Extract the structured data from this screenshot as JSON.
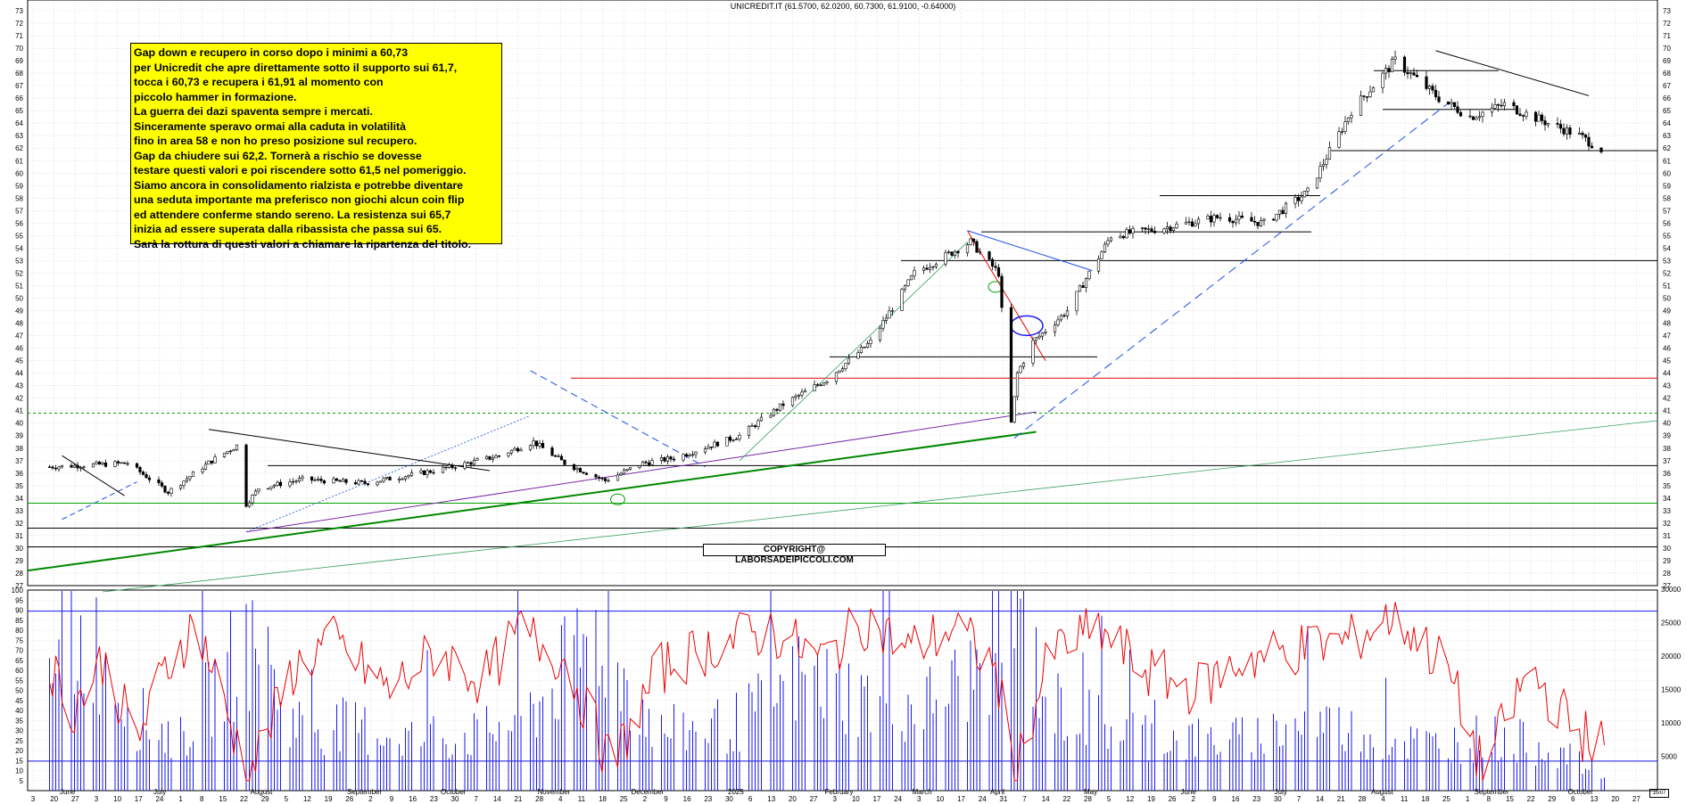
{
  "chart_data": [
    {
      "type": "candlestick",
      "title": "UNICREDIT.IT (61.5700, 62.0200, 60.7300, 61.9100, -0.64000)",
      "ylim": [
        27,
        73
      ],
      "y_ticks": [
        27,
        28,
        29,
        30,
        31,
        32,
        33,
        34,
        35,
        36,
        37,
        38,
        39,
        40,
        41,
        42,
        43,
        44,
        45,
        46,
        47,
        48,
        49,
        50,
        51,
        52,
        53,
        54,
        55,
        56,
        57,
        58,
        59,
        60,
        61,
        62,
        63,
        64,
        65,
        66,
        67,
        68,
        69,
        70,
        71,
        72,
        73
      ],
      "grid": true,
      "x_day_labels": [
        "3",
        "20",
        "27",
        "3",
        "10",
        "17",
        "24",
        "1",
        "8",
        "15",
        "22",
        "29",
        "5",
        "12",
        "19",
        "26",
        "2",
        "9",
        "16",
        "23",
        "30",
        "7",
        "14",
        "21",
        "28",
        "4",
        "11",
        "18",
        "25",
        "2",
        "9",
        "16",
        "23",
        "30",
        "6",
        "13",
        "20",
        "27",
        "3",
        "10",
        "17",
        "24",
        "3",
        "10",
        "17",
        "24",
        "31",
        "7",
        "14",
        "22",
        "28",
        "5",
        "12",
        "19",
        "26",
        "2",
        "9",
        "16",
        "23",
        "30",
        "7",
        "14",
        "21",
        "28",
        "4",
        "11",
        "18",
        "25",
        "1",
        "8",
        "15",
        "22",
        "29",
        "6",
        "13",
        "20",
        "27"
      ],
      "x_month_labels": [
        "June",
        "July",
        "August",
        "September",
        "October",
        "November",
        "December",
        "2025",
        "February",
        "March",
        "April",
        "May",
        "June",
        "July",
        "August",
        "September",
        "October"
      ],
      "series": [
        {
          "name": "",
          "x": [
            "2024-06-03",
            "2024-06-28",
            "2024-07-11",
            "2024-07-25",
            "2024-08-02",
            "2024-08-05",
            "2024-08-09",
            "2024-08-23",
            "2024-09-12",
            "2024-09-30",
            "2024-10-10",
            "2024-10-25",
            "2024-11-05",
            "2024-11-15",
            "2024-11-28",
            "2024-12-10",
            "2024-12-20",
            "2025-01-10",
            "2025-01-24",
            "2025-02-07",
            "2025-02-21",
            "2025-03-07",
            "2025-03-25",
            "2025-04-03",
            "2025-04-07",
            "2025-04-09",
            "2025-04-14",
            "2025-04-25",
            "2025-05-09",
            "2025-05-23",
            "2025-06-13",
            "2025-06-27",
            "2025-07-11",
            "2025-07-25",
            "2025-08-08",
            "2025-08-22",
            "2025-09-01",
            "2025-09-12",
            "2025-09-26",
            "2025-10-06",
            "2025-10-13"
          ],
          "close": [
            36.5,
            36.8,
            34.5,
            37.0,
            38.2,
            33.5,
            34.8,
            35.5,
            35.2,
            36.0,
            36.5,
            37.4,
            38.5,
            36.8,
            35.4,
            36.8,
            37.2,
            39.0,
            41.5,
            43.5,
            46.5,
            52.0,
            54.5,
            52.0,
            40.0,
            44.0,
            46.5,
            49.0,
            55.0,
            55.5,
            56.5,
            56.0,
            58.5,
            65.0,
            69.0,
            66.0,
            64.5,
            65.5,
            64.0,
            63.0,
            61.9
          ]
        }
      ],
      "reference_lines": [
        36.6,
        40.8,
        31.6,
        30.1,
        33.6,
        43.6,
        45.3,
        53.0,
        55.3,
        58.2,
        65.1,
        68.2,
        61.8
      ]
    },
    {
      "type": "line",
      "ylim": [
        0,
        100
      ],
      "y_ticks": [
        5,
        10,
        15,
        20,
        25,
        30,
        35,
        40,
        45,
        50,
        55,
        60,
        65,
        70,
        75,
        80,
        85,
        90,
        95,
        100
      ],
      "y2_ticks": [
        "5000",
        "10000",
        "15000",
        "20000",
        "25000",
        "30000"
      ],
      "series": [
        {
          "name": "",
          "color": "#ee0000",
          "x": [
            "2024-06-01",
            "2024-06-10",
            "2024-06-20",
            "2024-07-01",
            "2024-07-10",
            "2024-07-20",
            "2024-08-01",
            "2024-08-06",
            "2024-08-20",
            "2024-09-01",
            "2024-09-20",
            "2024-10-05",
            "2024-10-20",
            "2024-11-01",
            "2024-11-15",
            "2024-11-30",
            "2024-12-15",
            "2025-01-01",
            "2025-01-20",
            "2025-02-05",
            "2025-02-20",
            "2025-03-05",
            "2025-03-20",
            "2025-04-02",
            "2025-04-08",
            "2025-04-20",
            "2025-05-05",
            "2025-05-20",
            "2025-06-05",
            "2025-06-20",
            "2025-07-05",
            "2025-07-25",
            "2025-08-08",
            "2025-08-25",
            "2025-09-05",
            "2025-09-20",
            "2025-10-05",
            "2025-10-14"
          ],
          "values": [
            70,
            40,
            65,
            25,
            60,
            85,
            28,
            8,
            60,
            75,
            50,
            70,
            55,
            80,
            65,
            12,
            60,
            72,
            80,
            65,
            85,
            70,
            82,
            60,
            8,
            70,
            80,
            60,
            50,
            65,
            70,
            75,
            88,
            60,
            10,
            60,
            30,
            22
          ]
        },
        {
          "name": "",
          "color": "#0000cc",
          "type": "bar",
          "x": [
            "2024-06-01",
            "2024-06-15",
            "2024-07-01",
            "2024-07-15",
            "2024-08-05",
            "2024-08-20",
            "2024-09-10",
            "2024-10-01",
            "2024-10-20",
            "2024-11-05",
            "2024-11-25",
            "2024-12-15",
            "2025-01-10",
            "2025-01-30",
            "2025-02-20",
            "2025-03-10",
            "2025-03-28",
            "2025-04-07",
            "2025-04-20",
            "2025-05-10",
            "2025-06-01",
            "2025-06-20",
            "2025-07-10",
            "2025-07-30",
            "2025-08-20",
            "2025-09-05",
            "2025-09-25",
            "2025-10-14"
          ],
          "values": [
            14000,
            28000,
            13000,
            9000,
            26000,
            12000,
            11000,
            9000,
            10000,
            14000,
            28000,
            10000,
            12000,
            20000,
            16000,
            15000,
            21000,
            32000,
            15000,
            11000,
            9000,
            9000,
            12000,
            10000,
            8000,
            9500,
            8000,
            2500
          ]
        }
      ],
      "reference_lines": [
        89.5,
        14.7
      ]
    }
  ],
  "annotation": {
    "lines": [
      "Gap down e recupero in corso dopo i minimi a 60,73",
      "per Unicredit che apre direttamente sotto il supporto sui 61,7,",
      "tocca i 60,73 e recupera i 61,91 al momento con",
      "piccolo hammer in formazione.",
      "La guerra dei dazi spaventa sempre i mercati.",
      "Sinceramente speravo ormai alla caduta in volatilità",
      "fino in area 58 e non ho preso posizione sul recupero.",
      "Gap da chiudere sui 62,2. Tornerà a rischio se dovesse",
      "testare questi valori e poi riscendere sotto  61,5 nel pomeriggio.",
      "Siamo ancora in consolidamento rialzista e potrebbe diventare",
      "una seduta importante ma preferisco non giochi alcun coin flip",
      "ed attendere conferme stando sereno. La resistenza sui 65,7",
      "inizia ad essere superata dalla ribassista che passa sui 65.",
      "Sarà la rottura di questi valori a chiamare la ripartenza del titolo."
    ]
  },
  "copyright": "COPYRIGHT@ LABORSADEIPICCOLI.COM",
  "corner_tag": "10/07"
}
